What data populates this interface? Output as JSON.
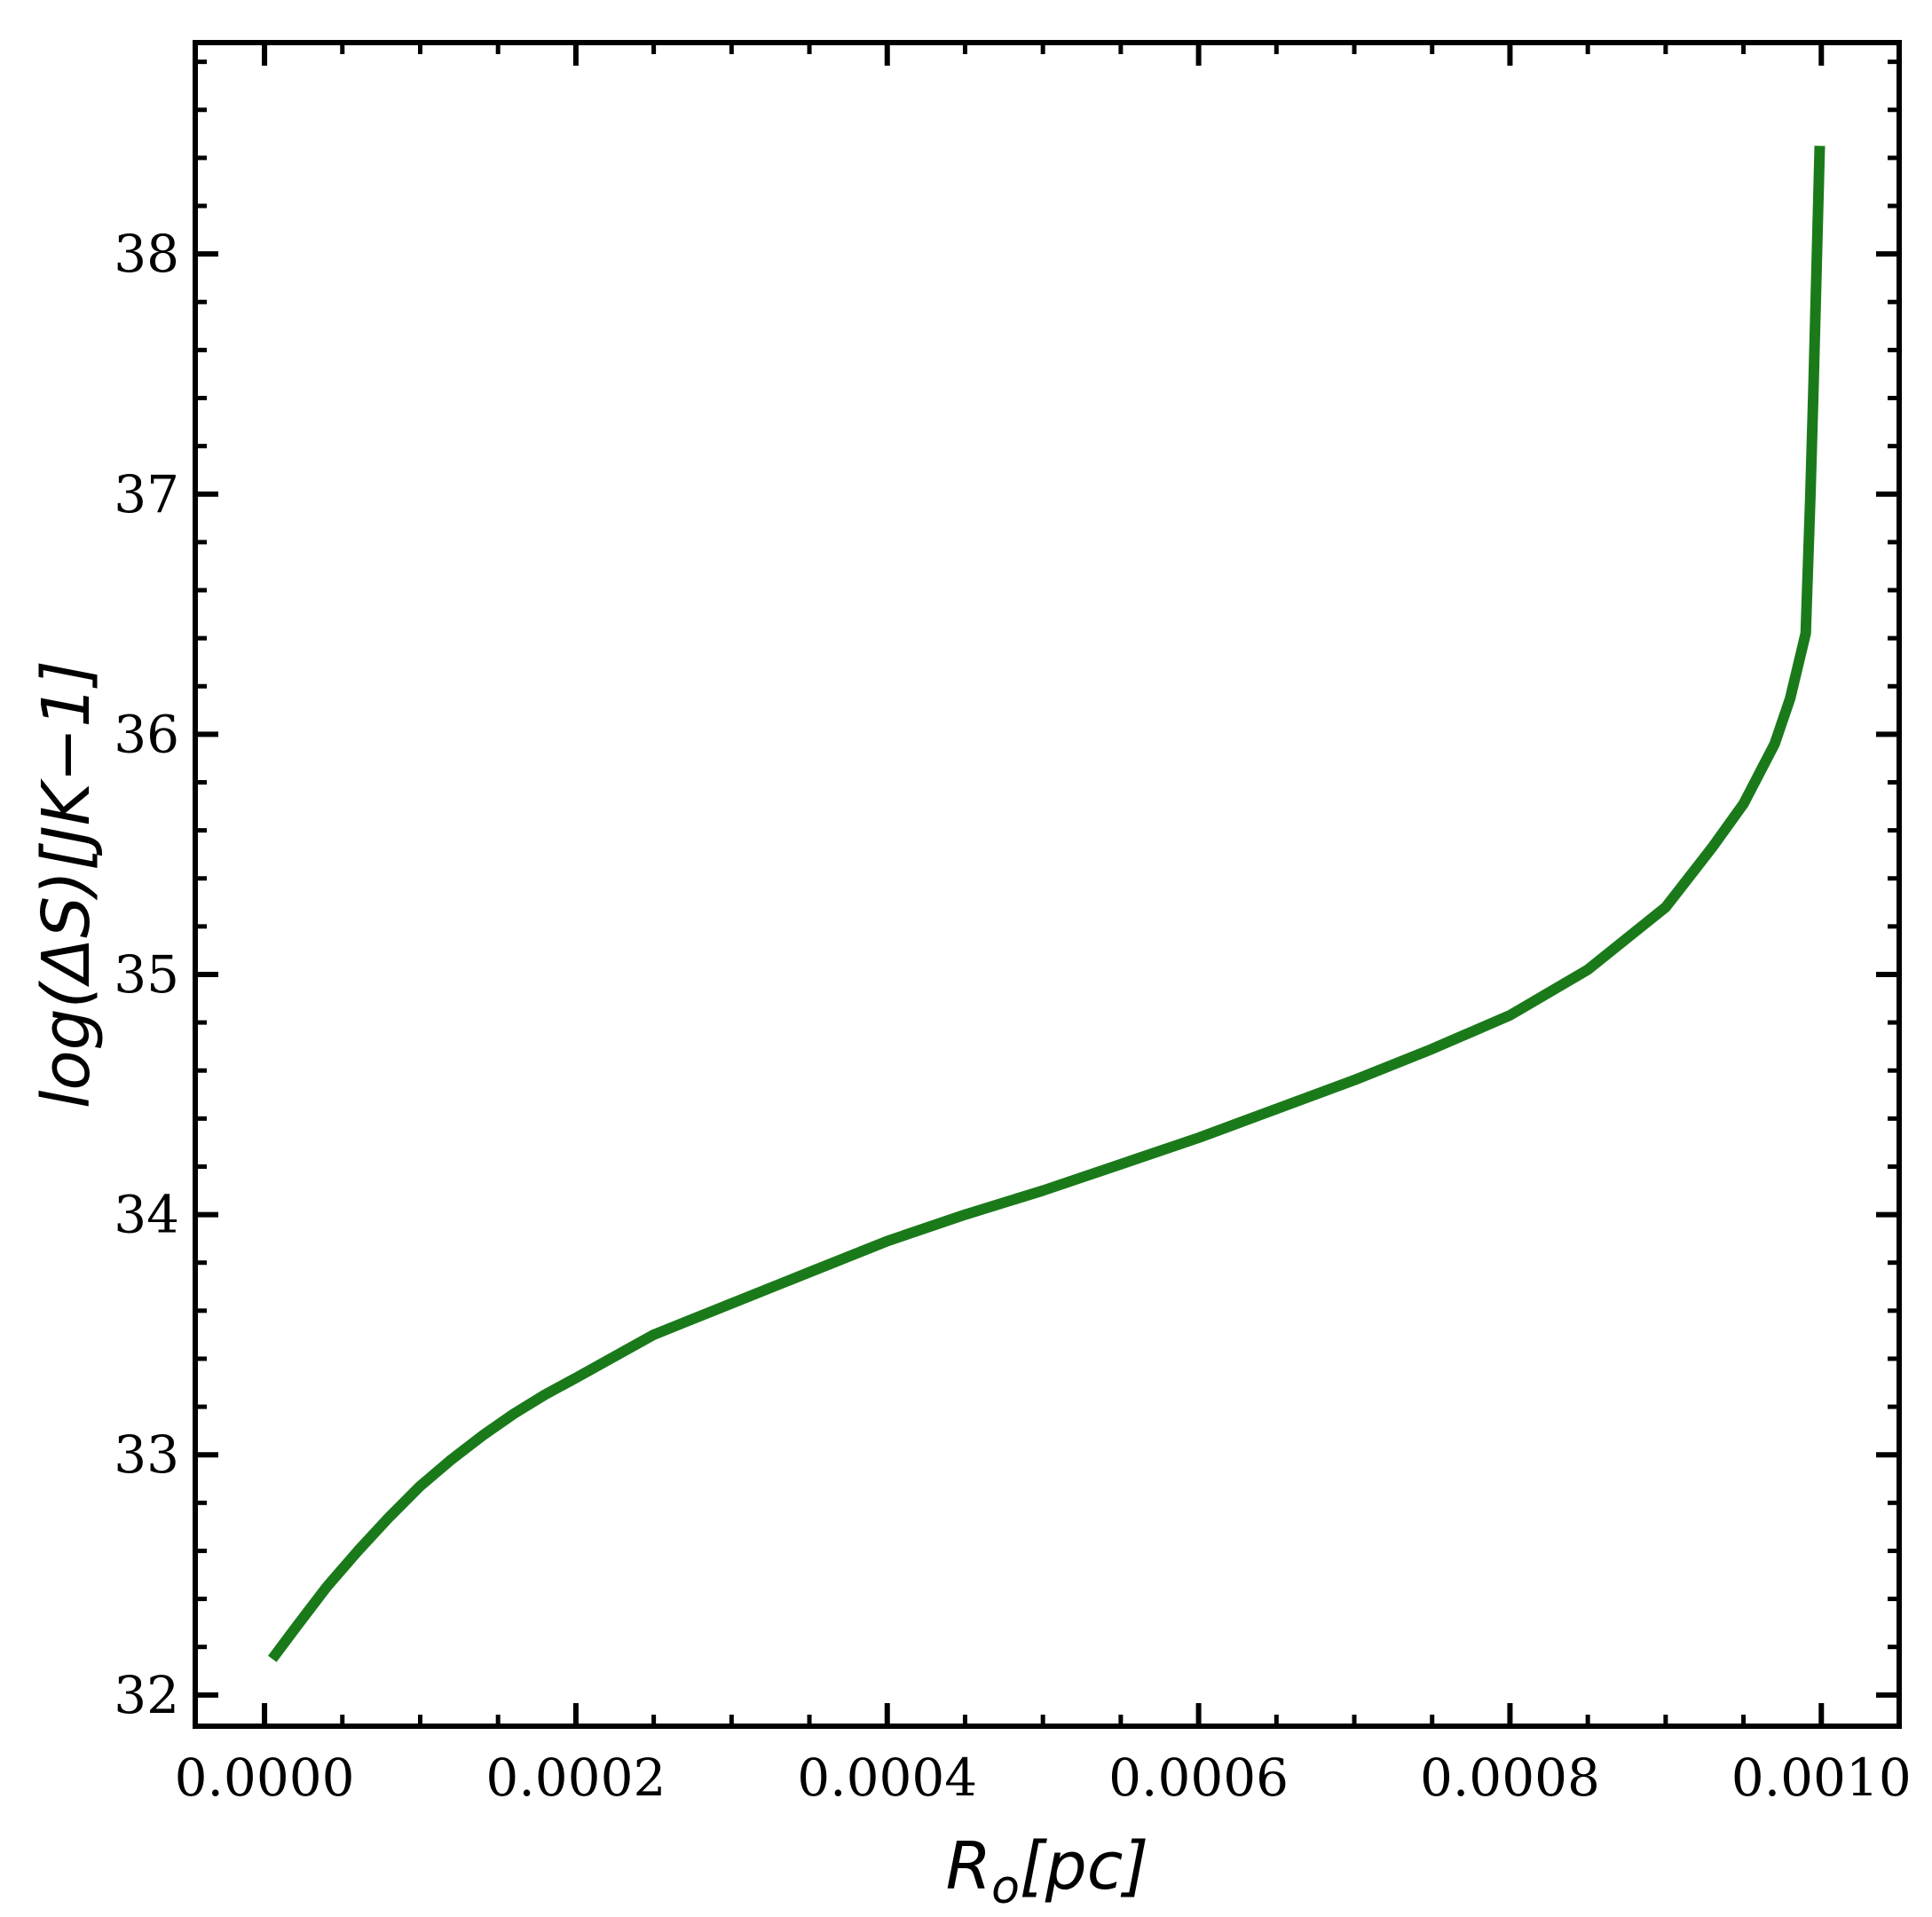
{
  "chart_data": {
    "type": "line",
    "xlabel": {
      "main": "R",
      "sub": "o",
      "rest": "[pc]"
    },
    "ylabel": "log(ΔS)[JK−1]",
    "xlim": [
      -4.45e-05,
      0.00105
    ],
    "ylim": [
      31.87,
      38.88
    ],
    "x_ticks": [
      0.0,
      0.0002,
      0.0004,
      0.0006,
      0.0008,
      0.001
    ],
    "x_tick_labels": [
      "0.0000",
      "0.0002",
      "0.0004",
      "0.0006",
      "0.0008",
      "0.0010"
    ],
    "y_ticks": [
      32,
      33,
      34,
      35,
      36,
      37,
      38
    ],
    "y_tick_labels": [
      "32",
      "33",
      "34",
      "35",
      "36",
      "37",
      "38"
    ],
    "x_minor_step": 5e-05,
    "y_minor_step": 0.2,
    "grid": false,
    "series": [
      {
        "color": "#1a7a1a",
        "x": [
          5e-06,
          2e-05,
          4e-05,
          6e-05,
          8e-05,
          0.0001,
          0.00012,
          0.00014,
          0.00016,
          0.00018,
          0.0002,
          0.00025,
          0.0003,
          0.00035,
          0.0004,
          0.00045,
          0.0005,
          0.00055,
          0.0006,
          0.00065,
          0.0007,
          0.00075,
          0.0008,
          0.00085,
          0.0009,
          0.00093,
          0.00095,
          0.00097,
          0.00098,
          0.00099,
          0.000993,
          0.000995,
          0.000997,
          0.000999
        ],
        "y": [
          32.15,
          32.28,
          32.45,
          32.6,
          32.74,
          32.87,
          32.98,
          33.08,
          33.17,
          33.25,
          33.32,
          33.5,
          33.63,
          33.76,
          33.89,
          34.0,
          34.1,
          34.21,
          34.32,
          34.44,
          34.56,
          34.69,
          34.83,
          35.02,
          35.28,
          35.53,
          35.71,
          35.96,
          36.15,
          36.42,
          37.0,
          37.45,
          37.95,
          38.45
        ]
      }
    ]
  }
}
